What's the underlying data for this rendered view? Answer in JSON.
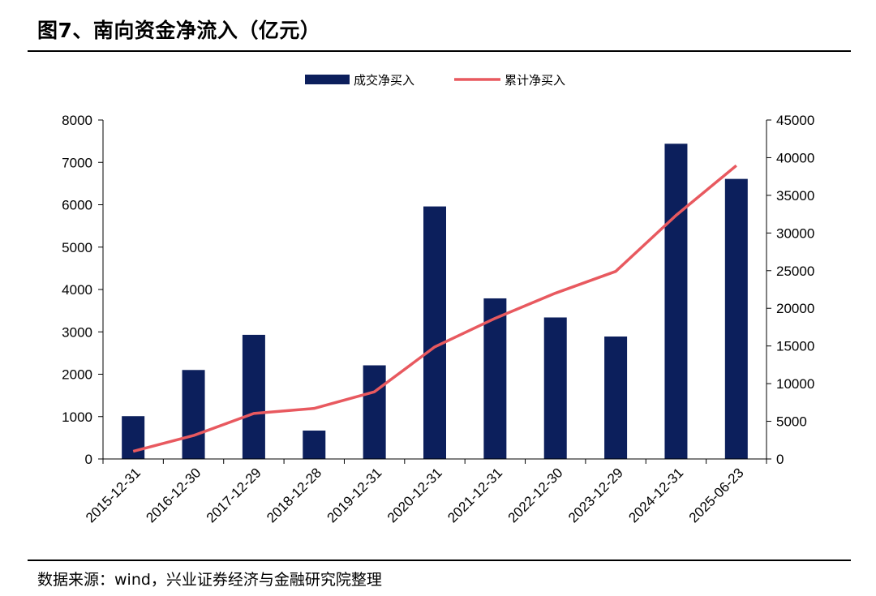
{
  "figure": {
    "title": "图7、南向资金净流入（亿元）",
    "source": "数据来源：wind，兴业证券经济与金融研究院整理"
  },
  "chart_data": {
    "type": "bar",
    "categories": [
      "2015-12-31",
      "2016-12-30",
      "2017-12-29",
      "2018-12-28",
      "2019-12-31",
      "2020-12-31",
      "2021-12-31",
      "2022-12-30",
      "2023-12-29",
      "2024-12-31",
      "2025-06-23"
    ],
    "series": [
      {
        "name": "成交净买入",
        "type": "bar",
        "axis": "left",
        "color": "#0c1f5c",
        "values": [
          1010,
          2100,
          2930,
          670,
          2210,
          5960,
          3790,
          3340,
          2890,
          7440,
          6610
        ]
      },
      {
        "name": "累计净买入",
        "type": "line",
        "axis": "right",
        "color": "#e8595f",
        "values": [
          1010,
          3110,
          6040,
          6710,
          8920,
          14880,
          18670,
          22010,
          24900,
          32340,
          38950
        ]
      }
    ],
    "y_left": {
      "min": 0,
      "max": 8000,
      "ticks": [
        0,
        1000,
        2000,
        3000,
        4000,
        5000,
        6000,
        7000,
        8000
      ]
    },
    "y_right": {
      "min": 0,
      "max": 45000,
      "ticks": [
        0,
        5000,
        10000,
        15000,
        20000,
        25000,
        30000,
        35000,
        40000,
        45000
      ]
    },
    "legend": "top-center",
    "grid": false,
    "xlabel": "",
    "ylabel": ""
  }
}
